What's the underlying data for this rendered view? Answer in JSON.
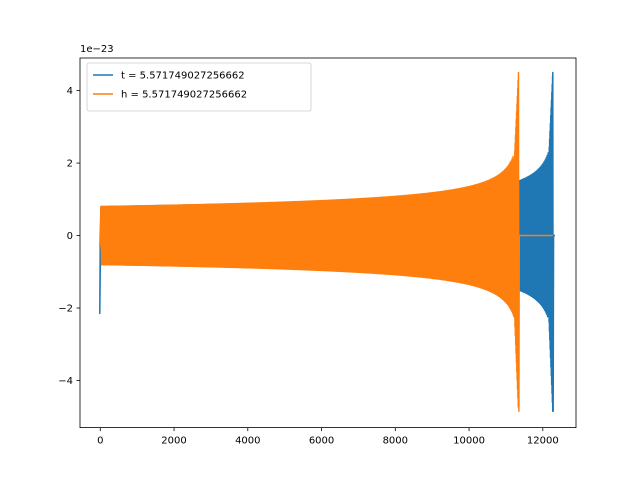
{
  "chart_data": {
    "type": "line",
    "title": "",
    "xlabel": "",
    "ylabel": "",
    "y_offset_label": "1e−23",
    "xlim": [
      -550,
      12900
    ],
    "ylim": [
      -5.3,
      4.9
    ],
    "x_ticks": [
      0,
      2000,
      4000,
      6000,
      8000,
      10000,
      12000
    ],
    "y_ticks": [
      -4,
      -2,
      0,
      2,
      4
    ],
    "x_tick_labels": [
      "0",
      "2000",
      "4000",
      "6000",
      "8000",
      "10000",
      "12000"
    ],
    "y_tick_labels": [
      "−4",
      "−2",
      "0",
      "2",
      "4"
    ],
    "grid": false,
    "legend_position": "upper-left",
    "series": [
      {
        "name": "t = 5.571749027256662",
        "color": "#1f77b4",
        "x_start": 0,
        "x_merger": 12270,
        "x_end": 12330,
        "amp_start": 0.8,
        "amp_near_merger": 3.8,
        "peak_max": 4.5,
        "peak_min": -4.85,
        "initial_spike": -2.15
      },
      {
        "name": "h = 5.571749027256662",
        "color": "#ff7f0e",
        "x_start": 0,
        "x_merger": 11340,
        "x_end": 12270,
        "amp_start": 0.8,
        "amp_near_merger": 3.8,
        "peak_max": 4.5,
        "peak_min": -4.85,
        "initial_spike": -0.3
      }
    ]
  }
}
